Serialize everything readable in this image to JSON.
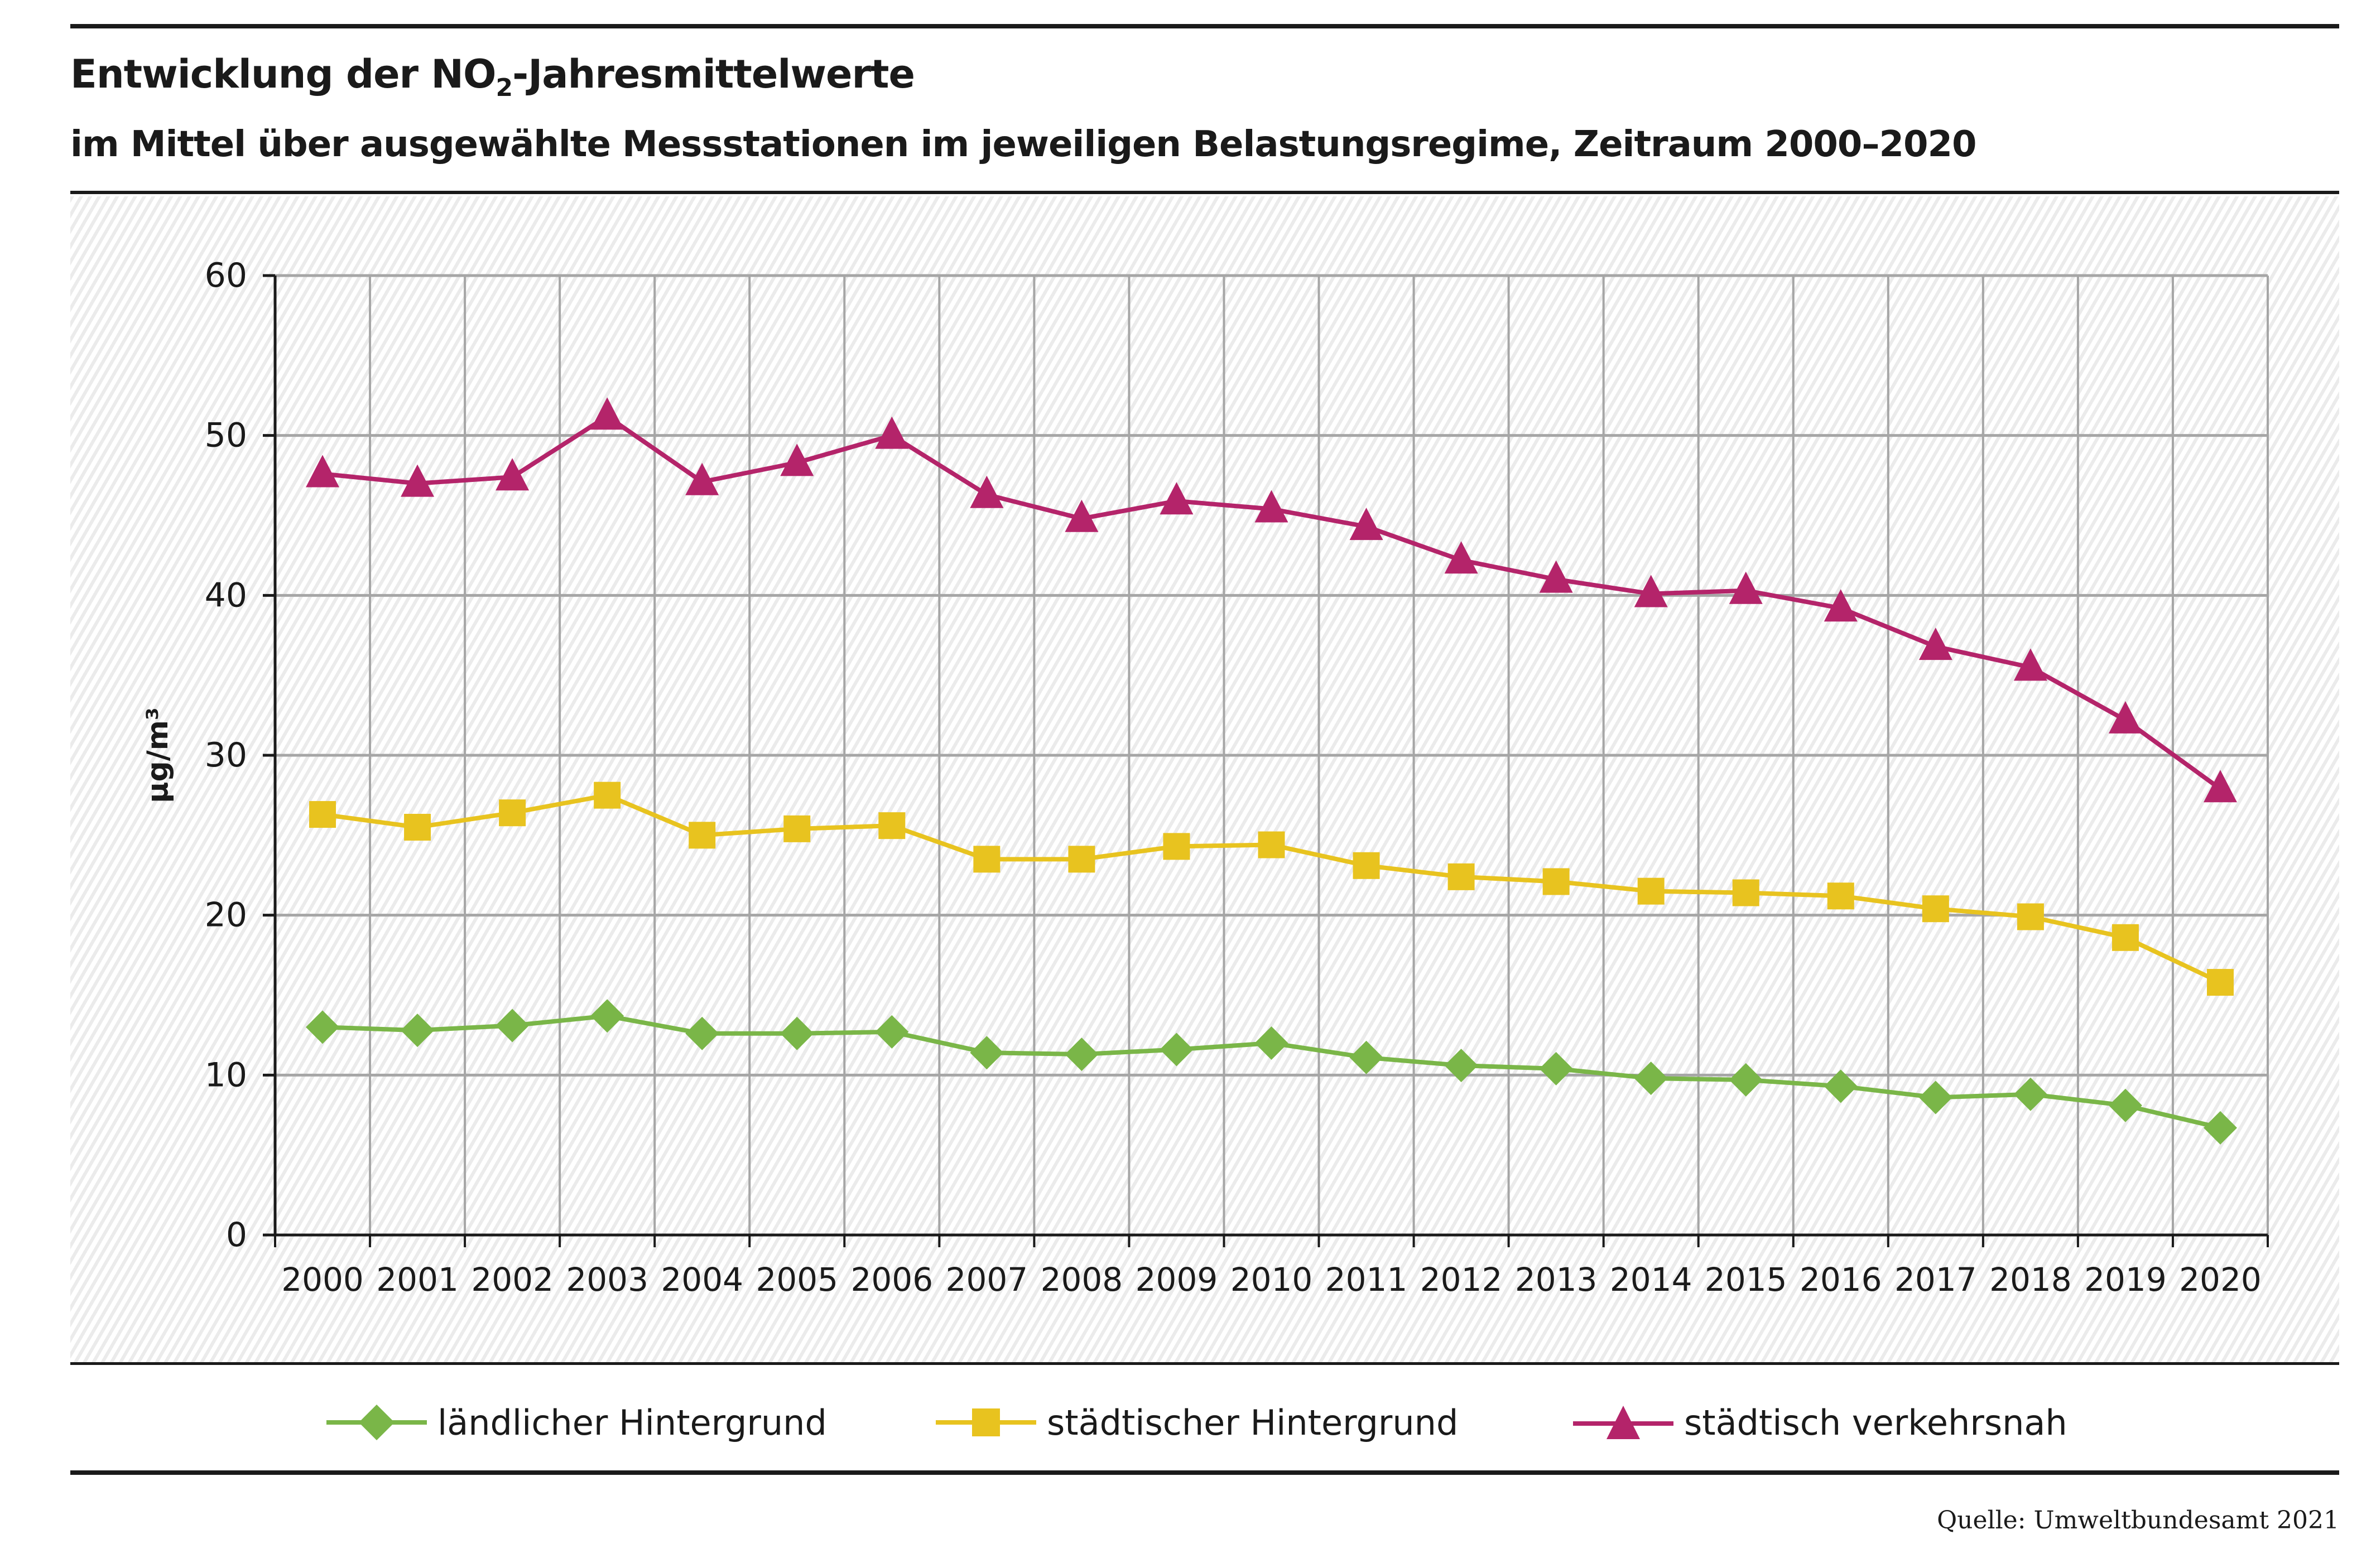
{
  "header": {
    "title_prefix": "Entwicklung der NO",
    "title_sub": "2",
    "title_suffix": "-Jahresmittelwerte",
    "subtitle": "im Mittel über ausgewählte Messstationen im jeweiligen Belastungsregime, Zeitraum 2000–2020"
  },
  "footer": {
    "source": "Quelle: Umweltbundesamt 2021"
  },
  "chart_data": {
    "type": "line",
    "title": "Entwicklung der NO2-Jahresmittelwerte",
    "subtitle": "im Mittel über ausgewählte Messstationen im jeweiligen Belastungsregime, Zeitraum 2000–2020",
    "xlabel": "",
    "ylabel": "µg/m³",
    "ylim": [
      0,
      60
    ],
    "yticks": [
      0,
      10,
      20,
      30,
      40,
      50,
      60
    ],
    "grid": true,
    "legend_position": "bottom",
    "categories": [
      "2000",
      "2001",
      "2002",
      "2003",
      "2004",
      "2005",
      "2006",
      "2007",
      "2008",
      "2009",
      "2010",
      "2011",
      "2012",
      "2013",
      "2014",
      "2015",
      "2016",
      "2017",
      "2018",
      "2019",
      "2020"
    ],
    "series": [
      {
        "name": "ländlicher Hintergrund",
        "color": "#7ab648",
        "marker": "diamond",
        "values": [
          13.0,
          12.8,
          13.1,
          13.7,
          12.6,
          12.6,
          12.7,
          11.4,
          11.3,
          11.6,
          12.0,
          11.1,
          10.6,
          10.4,
          9.8,
          9.7,
          9.3,
          8.6,
          8.8,
          8.1,
          6.7
        ]
      },
      {
        "name": "städtischer Hintergrund",
        "color": "#e8c31f",
        "marker": "square",
        "values": [
          26.3,
          25.5,
          26.4,
          27.5,
          25.0,
          25.4,
          25.6,
          23.5,
          23.5,
          24.3,
          24.4,
          23.1,
          22.4,
          22.1,
          21.5,
          21.4,
          21.2,
          20.4,
          19.9,
          18.6,
          15.8
        ]
      },
      {
        "name": "städtisch verkehrsnah",
        "color": "#b4246a",
        "marker": "triangle",
        "values": [
          47.6,
          47.0,
          47.4,
          51.2,
          47.1,
          48.3,
          50.0,
          46.3,
          44.8,
          45.9,
          45.4,
          44.3,
          42.2,
          41.0,
          40.1,
          40.3,
          39.2,
          36.8,
          35.5,
          32.2,
          27.9
        ]
      }
    ]
  }
}
